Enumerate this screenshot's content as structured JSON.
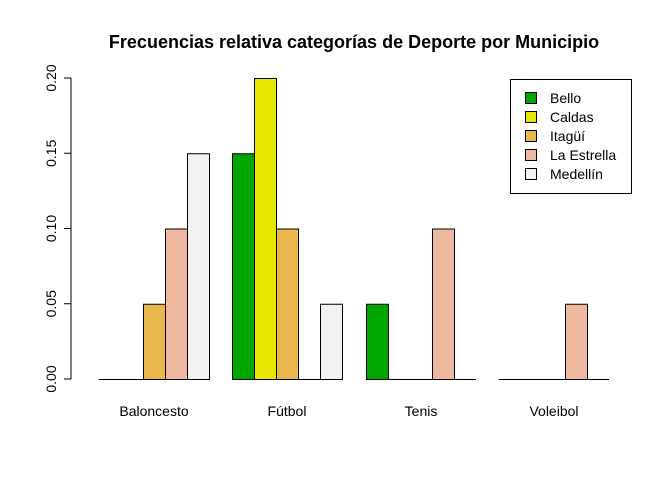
{
  "chart_data": {
    "type": "bar",
    "title": "Frecuencias relativa categorías de Deporte por Municipio",
    "xlabel": "",
    "ylabel": "",
    "categories": [
      "Baloncesto",
      "Fútbol",
      "Tenis",
      "Voleibol"
    ],
    "series": [
      {
        "name": "Bello",
        "color": "#00A600",
        "values": [
          0.0,
          0.15,
          0.05,
          0.0
        ]
      },
      {
        "name": "Caldas",
        "color": "#E6E600",
        "values": [
          0.0,
          0.2,
          0.0,
          0.0
        ]
      },
      {
        "name": "Itagüí",
        "color": "#E8B84C",
        "values": [
          0.05,
          0.1,
          0.0,
          0.0
        ]
      },
      {
        "name": "La Estrella",
        "color": "#EEB99F",
        "values": [
          0.1,
          0.0,
          0.1,
          0.05
        ]
      },
      {
        "name": "Medellín",
        "color": "#F2F2F2",
        "values": [
          0.15,
          0.05,
          0.0,
          0.0
        ]
      }
    ],
    "y_ticks": [
      "0.00",
      "0.05",
      "0.10",
      "0.15",
      "0.20"
    ],
    "ylim": [
      0,
      0.2
    ],
    "grid": false,
    "legend_position": "top-right",
    "layout_hint": "grouped"
  }
}
